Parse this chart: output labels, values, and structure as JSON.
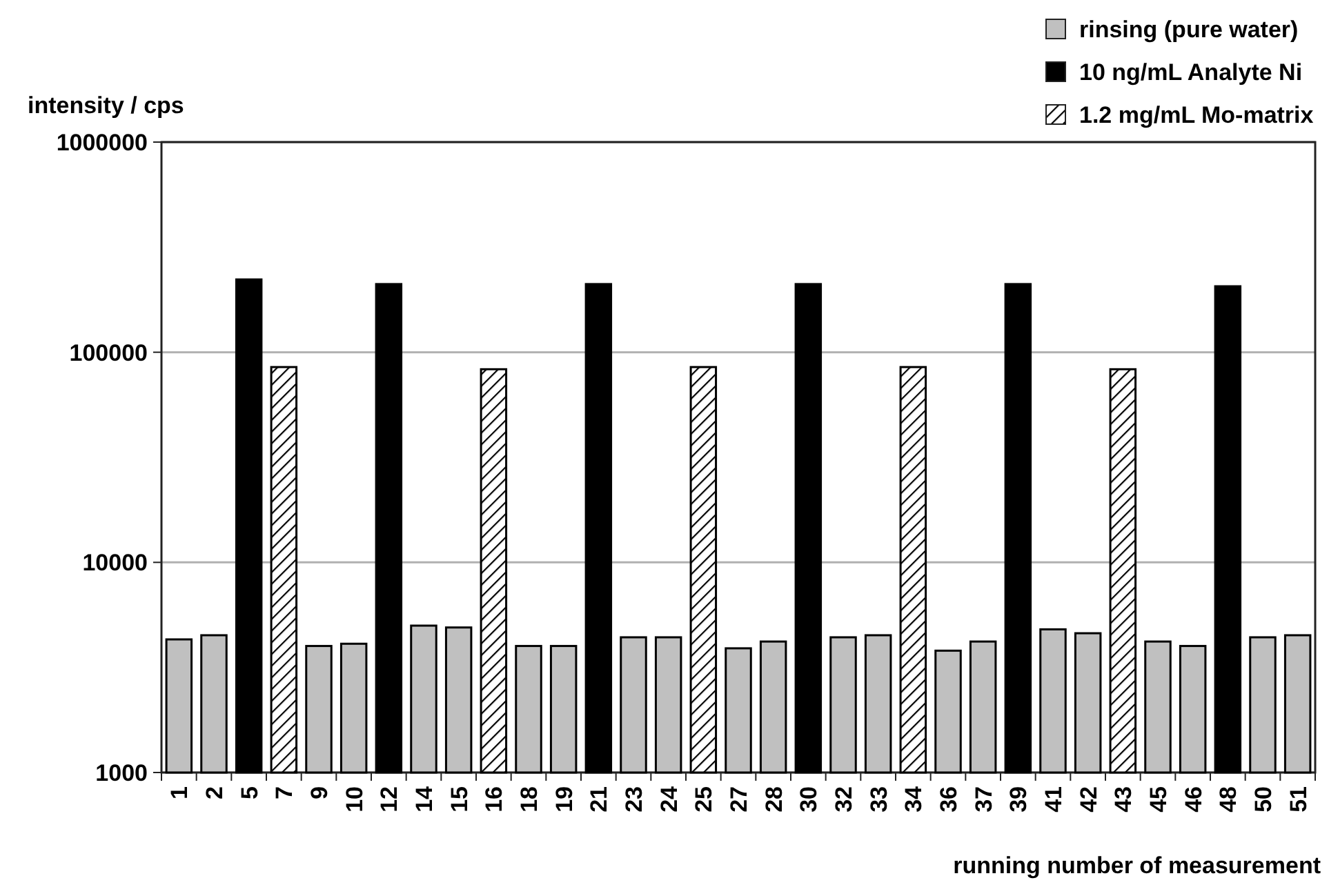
{
  "chart_data": {
    "type": "bar",
    "xlabel": "running number of measurement",
    "ylabel": "intensity / cps",
    "categories": [
      "1",
      "2",
      "5",
      "7",
      "9",
      "10",
      "12",
      "14",
      "15",
      "16",
      "18",
      "19",
      "21",
      "23",
      "24",
      "25",
      "27",
      "28",
      "30",
      "32",
      "33",
      "34",
      "36",
      "37",
      "39",
      "41",
      "42",
      "43",
      "45",
      "46",
      "48",
      "50",
      "51"
    ],
    "series": [
      {
        "name": "rinsing (pure water)",
        "color": "#c0c0c0",
        "values": [
          4300,
          4500,
          null,
          null,
          4000,
          4100,
          null,
          5000,
          4900,
          null,
          4000,
          4000,
          null,
          4400,
          4400,
          null,
          3900,
          4200,
          null,
          4400,
          4500,
          null,
          3800,
          4200,
          null,
          4800,
          4600,
          null,
          4200,
          4000,
          null,
          4400,
          4500
        ]
      },
      {
        "name": "10 ng/mL Analyte Ni",
        "color": "#000000",
        "values": [
          null,
          null,
          222000,
          null,
          null,
          null,
          211000,
          null,
          null,
          null,
          null,
          null,
          211000,
          null,
          null,
          null,
          null,
          null,
          211000,
          null,
          null,
          null,
          null,
          null,
          211000,
          null,
          null,
          null,
          null,
          null,
          206000,
          null,
          null
        ]
      },
      {
        "name": "1.2 mg/mL Mo-matrix",
        "color": "#000000",
        "values": [
          null,
          null,
          null,
          85000,
          null,
          null,
          null,
          null,
          null,
          83000,
          null,
          null,
          null,
          null,
          null,
          85000,
          null,
          null,
          null,
          null,
          null,
          85000,
          null,
          null,
          null,
          null,
          null,
          83000,
          null,
          null,
          null,
          null,
          null
        ]
      }
    ],
    "log": true,
    "ylim": [
      1000,
      1000000
    ],
    "yticks": [
      1000,
      10000,
      100000,
      1000000
    ],
    "grid": "y",
    "legend": "top right"
  }
}
